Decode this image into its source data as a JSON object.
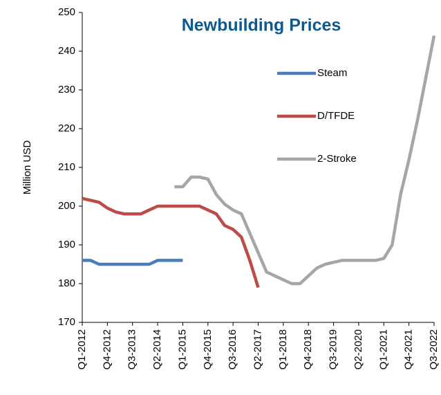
{
  "chart_data": {
    "type": "line",
    "title": "Newbuilding Prices",
    "y_label": "Million USD",
    "categories": [
      "Q1-2012",
      null,
      null,
      "Q4-2012",
      null,
      null,
      "Q3-2013",
      null,
      null,
      "Q2-2014",
      null,
      null,
      "Q1-2015",
      null,
      null,
      "Q4-2015",
      null,
      null,
      "Q3-2016",
      null,
      null,
      "Q2-2017",
      null,
      null,
      "Q1-2018",
      null,
      null,
      "Q4-2018",
      null,
      null,
      "Q3-2019",
      null,
      null,
      "Q2-2020",
      null,
      null,
      "Q1-2021",
      null,
      null,
      "Q4-2021",
      null,
      null,
      "Q3-2022"
    ],
    "series": [
      {
        "name": "Steam",
        "color": "#4a7ebb",
        "values": [
          186,
          186,
          185,
          185,
          185,
          185,
          185,
          185,
          185,
          186,
          186,
          186,
          186,
          null,
          null,
          null,
          null,
          null,
          null,
          null,
          null,
          null,
          null,
          null,
          null,
          null,
          null,
          null,
          null,
          null,
          null,
          null,
          null,
          null,
          null,
          null,
          null,
          null,
          null,
          null,
          null,
          null,
          null
        ]
      },
      {
        "name": "D/TFDE",
        "color": "#be4b48",
        "values": [
          202,
          201.5,
          201,
          199.5,
          198.5,
          198,
          198,
          198,
          199,
          200,
          200,
          200,
          200,
          200,
          200,
          199,
          198,
          195,
          194,
          192,
          186,
          179,
          null,
          null,
          null,
          null,
          null,
          null,
          null,
          null,
          null,
          null,
          null,
          null,
          null,
          null,
          null,
          null,
          null,
          null,
          null,
          null,
          null
        ]
      },
      {
        "name": "2-Stroke",
        "color": "#a6a6a6",
        "values": [
          null,
          null,
          null,
          null,
          null,
          null,
          null,
          null,
          null,
          null,
          null,
          205,
          205,
          207.5,
          207.5,
          207,
          203,
          200.5,
          199,
          198,
          193,
          188,
          183,
          182,
          181,
          180,
          180,
          182,
          184,
          185,
          185.5,
          186,
          186,
          186,
          186,
          186,
          186.5,
          190,
          203,
          212,
          222,
          233,
          244
        ]
      }
    ],
    "ylim": [
      170,
      250
    ],
    "yticks": [
      170,
      180,
      190,
      200,
      210,
      220,
      230,
      240,
      250
    ],
    "grid": false
  }
}
